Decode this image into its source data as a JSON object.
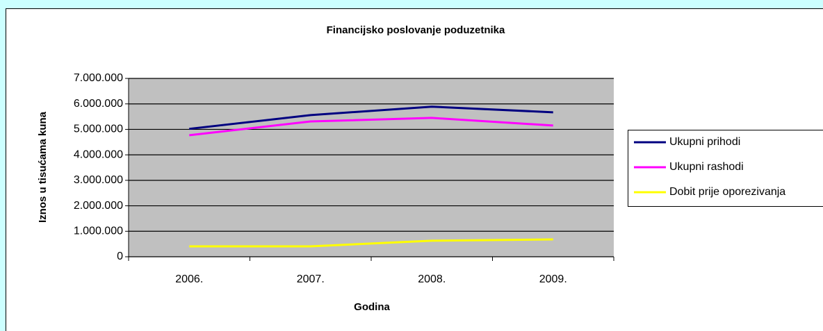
{
  "chart_data": {
    "type": "line",
    "title": "Financijsko poslovanje poduzetnika",
    "x_label": "Godina",
    "y_label": "Iznos u tisućama kuna",
    "categories": [
      "2006.",
      "2007.",
      "2008.",
      "2009."
    ],
    "series": [
      {
        "name": "Ukupni prihodi",
        "color": "#000080",
        "values": [
          5020000,
          5560000,
          5890000,
          5670000
        ]
      },
      {
        "name": "Ukupni rashodi",
        "color": "#ff00ff",
        "values": [
          4770000,
          5310000,
          5450000,
          5150000
        ]
      },
      {
        "name": "Dobit prije oporezivanja",
        "color": "#ffff00",
        "values": [
          410000,
          410000,
          630000,
          680000
        ]
      }
    ],
    "ylim": [
      0,
      7000000
    ],
    "yticks": [
      0,
      {
        "value": 1000000,
        "label": "1.000.000"
      },
      {
        "value": 2000000,
        "label": "2.000.000"
      },
      {
        "value": 3000000,
        "label": "3.000.000"
      },
      {
        "value": 4000000,
        "label": "4.000.000"
      },
      {
        "value": 5000000,
        "label": "5.000.000"
      },
      {
        "value": 6000000,
        "label": "6.000.000"
      },
      {
        "value": 7000000,
        "label": "7.000.000"
      }
    ],
    "grid": true,
    "legend": "right"
  }
}
